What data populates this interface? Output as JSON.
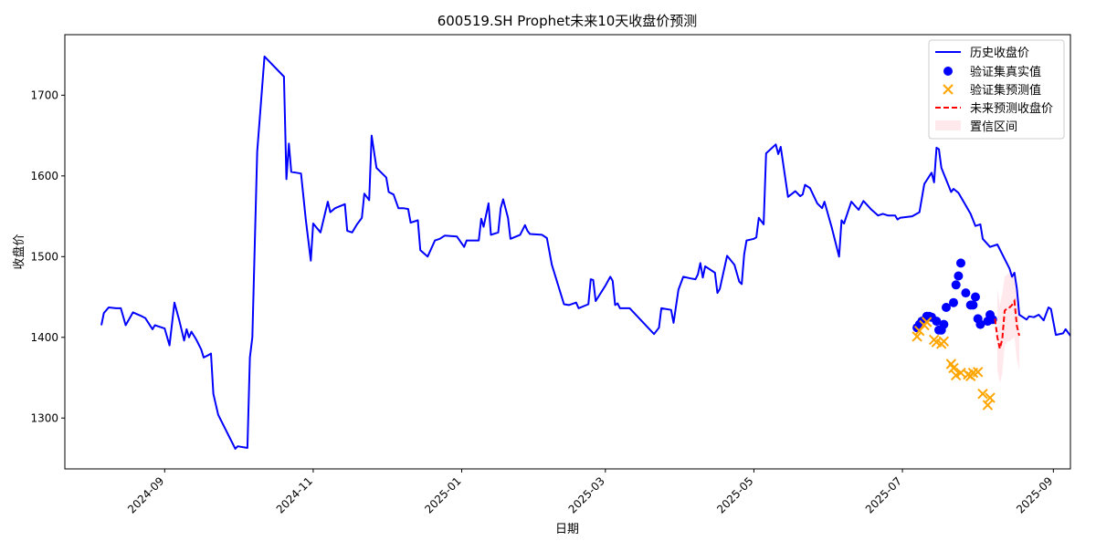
{
  "chart_data": {
    "type": "line",
    "title": "600519.SH Prophet未来10天收盘价预测",
    "xlabel": "日期",
    "ylabel": "收盘价",
    "x_tick_labels": [
      "2024-09",
      "2024-11",
      "2025-01",
      "2025-03",
      "2025-05",
      "2025-07",
      "2025-09"
    ],
    "y_ticks": [
      1300,
      1400,
      1500,
      1600,
      1700
    ],
    "xlim": [
      "2024-07-22",
      "2025-09-08"
    ],
    "ylim": [
      1237,
      1775
    ],
    "grid": false,
    "legend_position": "top-right",
    "colors": {
      "history": "#0000ff",
      "val_actual": "#0000ff",
      "val_pred": "#ffa500",
      "forecast": "#ff0000",
      "band": "#ffc0cb"
    },
    "series": [
      {
        "name": "历史收盘价",
        "kind": "line",
        "points": [
          [
            "2024-08-06",
            1415
          ],
          [
            "2024-08-07",
            1430
          ],
          [
            "2024-08-09",
            1437
          ],
          [
            "2024-08-12",
            1436
          ],
          [
            "2024-08-14",
            1436
          ],
          [
            "2024-08-16",
            1415
          ],
          [
            "2024-08-19",
            1431
          ],
          [
            "2024-08-22",
            1427
          ],
          [
            "2024-08-24",
            1424
          ],
          [
            "2024-08-27",
            1410
          ],
          [
            "2024-08-28",
            1415
          ],
          [
            "2024-08-30",
            1413
          ],
          [
            "2024-09-01",
            1411
          ],
          [
            "2024-09-03",
            1390
          ],
          [
            "2024-09-05",
            1443
          ],
          [
            "2024-09-07",
            1421
          ],
          [
            "2024-09-09",
            1396
          ],
          [
            "2024-09-10",
            1410
          ],
          [
            "2024-09-11",
            1400
          ],
          [
            "2024-09-12",
            1407
          ],
          [
            "2024-09-14",
            1397
          ],
          [
            "2024-09-16",
            1385
          ],
          [
            "2024-09-17",
            1375
          ],
          [
            "2024-09-19",
            1378
          ],
          [
            "2024-09-20",
            1380
          ],
          [
            "2024-09-21",
            1330
          ],
          [
            "2024-09-23",
            1304
          ],
          [
            "2024-09-30",
            1262
          ],
          [
            "2024-10-01",
            1265
          ],
          [
            "2024-10-05",
            1263
          ],
          [
            "2024-10-06",
            1375
          ],
          [
            "2024-10-07",
            1400
          ],
          [
            "2024-10-09",
            1630
          ],
          [
            "2024-10-12",
            1748
          ],
          [
            "2024-10-20",
            1723
          ],
          [
            "2024-10-21",
            1596
          ],
          [
            "2024-10-22",
            1640
          ],
          [
            "2024-10-23",
            1605
          ],
          [
            "2024-10-25",
            1604
          ],
          [
            "2024-10-27",
            1603
          ],
          [
            "2024-10-29",
            1545
          ],
          [
            "2024-10-31",
            1495
          ],
          [
            "2024-11-01",
            1541
          ],
          [
            "2024-11-04",
            1530
          ],
          [
            "2024-11-07",
            1568
          ],
          [
            "2024-11-08",
            1555
          ],
          [
            "2024-11-10",
            1560
          ],
          [
            "2024-11-14",
            1565
          ],
          [
            "2024-11-15",
            1532
          ],
          [
            "2024-11-17",
            1530
          ],
          [
            "2024-11-19",
            1540
          ],
          [
            "2024-11-21",
            1548
          ],
          [
            "2024-11-22",
            1578
          ],
          [
            "2024-11-24",
            1570
          ],
          [
            "2024-11-25",
            1650
          ],
          [
            "2024-11-27",
            1610
          ],
          [
            "2024-11-29",
            1604
          ],
          [
            "2024-12-01",
            1598
          ],
          [
            "2024-12-02",
            1580
          ],
          [
            "2024-12-04",
            1577
          ],
          [
            "2024-12-06",
            1560
          ],
          [
            "2024-12-08",
            1560
          ],
          [
            "2024-12-10",
            1559
          ],
          [
            "2024-12-11",
            1542
          ],
          [
            "2024-12-14",
            1545
          ],
          [
            "2024-12-15",
            1508
          ],
          [
            "2024-12-18",
            1500
          ],
          [
            "2024-12-21",
            1520
          ],
          [
            "2024-12-23",
            1522
          ],
          [
            "2024-12-25",
            1526
          ],
          [
            "2024-12-30",
            1525
          ],
          [
            "2025-01-02",
            1512
          ],
          [
            "2025-01-03",
            1520
          ],
          [
            "2025-01-08",
            1520
          ],
          [
            "2025-01-09",
            1547
          ],
          [
            "2025-01-10",
            1537
          ],
          [
            "2025-01-12",
            1566
          ],
          [
            "2025-01-13",
            1527
          ],
          [
            "2025-01-16",
            1530
          ],
          [
            "2025-01-17",
            1560
          ],
          [
            "2025-01-18",
            1571
          ],
          [
            "2025-01-20",
            1548
          ],
          [
            "2025-01-21",
            1522
          ],
          [
            "2025-01-25",
            1527
          ],
          [
            "2025-01-27",
            1539
          ],
          [
            "2025-01-28",
            1532
          ],
          [
            "2025-01-29",
            1528
          ],
          [
            "2025-02-03",
            1527
          ],
          [
            "2025-02-05",
            1523
          ],
          [
            "2025-02-07",
            1490
          ],
          [
            "2025-02-12",
            1441
          ],
          [
            "2025-02-14",
            1440
          ],
          [
            "2025-02-17",
            1443
          ],
          [
            "2025-02-18",
            1436
          ],
          [
            "2025-02-22",
            1441
          ],
          [
            "2025-02-23",
            1472
          ],
          [
            "2025-02-24",
            1471
          ],
          [
            "2025-02-25",
            1445
          ],
          [
            "2025-03-01",
            1464
          ],
          [
            "2025-03-03",
            1475
          ],
          [
            "2025-03-04",
            1470
          ],
          [
            "2025-03-05",
            1440
          ],
          [
            "2025-03-06",
            1442
          ],
          [
            "2025-03-07",
            1436
          ],
          [
            "2025-03-11",
            1436
          ],
          [
            "2025-03-21",
            1404
          ],
          [
            "2025-03-23",
            1412
          ],
          [
            "2025-03-24",
            1436
          ],
          [
            "2025-03-28",
            1434
          ],
          [
            "2025-03-29",
            1418
          ],
          [
            "2025-03-31",
            1459
          ],
          [
            "2025-04-02",
            1475
          ],
          [
            "2025-04-05",
            1473
          ],
          [
            "2025-04-07",
            1472
          ],
          [
            "2025-04-08",
            1478
          ],
          [
            "2025-04-09",
            1492
          ],
          [
            "2025-04-10",
            1474
          ],
          [
            "2025-04-11",
            1488
          ],
          [
            "2025-04-15",
            1480
          ],
          [
            "2025-04-16",
            1455
          ],
          [
            "2025-04-17",
            1460
          ],
          [
            "2025-04-20",
            1501
          ],
          [
            "2025-04-23",
            1490
          ],
          [
            "2025-04-25",
            1469
          ],
          [
            "2025-04-26",
            1466
          ],
          [
            "2025-04-27",
            1503
          ],
          [
            "2025-04-28",
            1520
          ],
          [
            "2025-05-01",
            1522
          ],
          [
            "2025-05-02",
            1524
          ],
          [
            "2025-05-03",
            1548
          ],
          [
            "2025-05-05",
            1540
          ],
          [
            "2025-05-06",
            1628
          ],
          [
            "2025-05-10",
            1639
          ],
          [
            "2025-05-11",
            1627
          ],
          [
            "2025-05-12",
            1636
          ],
          [
            "2025-05-15",
            1574
          ],
          [
            "2025-05-18",
            1581
          ],
          [
            "2025-05-20",
            1575
          ],
          [
            "2025-05-21",
            1577
          ],
          [
            "2025-05-22",
            1589
          ],
          [
            "2025-05-24",
            1585
          ],
          [
            "2025-05-27",
            1566
          ],
          [
            "2025-05-29",
            1560
          ],
          [
            "2025-05-30",
            1568
          ],
          [
            "2025-06-02",
            1536
          ],
          [
            "2025-06-05",
            1500
          ],
          [
            "2025-06-06",
            1545
          ],
          [
            "2025-06-07",
            1541
          ],
          [
            "2025-06-10",
            1568
          ],
          [
            "2025-06-13",
            1558
          ],
          [
            "2025-06-15",
            1569
          ],
          [
            "2025-06-18",
            1559
          ],
          [
            "2025-06-21",
            1551
          ],
          [
            "2025-06-23",
            1553
          ],
          [
            "2025-06-25",
            1551
          ],
          [
            "2025-06-28",
            1551
          ],
          [
            "2025-06-29",
            1546
          ],
          [
            "2025-06-30",
            1548
          ],
          [
            "2025-07-05",
            1550
          ],
          [
            "2025-07-08",
            1555
          ],
          [
            "2025-07-10",
            1590
          ],
          [
            "2025-07-13",
            1604
          ],
          [
            "2025-07-14",
            1592
          ],
          [
            "2025-07-15",
            1635
          ],
          [
            "2025-07-16",
            1633
          ],
          [
            "2025-07-17",
            1610
          ],
          [
            "2025-07-21",
            1580
          ],
          [
            "2025-07-22",
            1584
          ],
          [
            "2025-07-24",
            1579
          ],
          [
            "2025-07-29",
            1553
          ],
          [
            "2025-07-31",
            1538
          ],
          [
            "2025-08-02",
            1540
          ],
          [
            "2025-08-03",
            1522
          ],
          [
            "2025-08-06",
            1512
          ],
          [
            "2025-08-09",
            1515
          ],
          [
            "2025-08-14",
            1485
          ],
          [
            "2025-08-15",
            1475
          ],
          [
            "2025-08-16",
            1480
          ],
          [
            "2025-08-17",
            1460
          ],
          [
            "2025-08-18",
            1428
          ],
          [
            "2025-08-21",
            1422
          ],
          [
            "2025-08-22",
            1426
          ],
          [
            "2025-08-24",
            1425
          ],
          [
            "2025-08-26",
            1428
          ],
          [
            "2025-08-28",
            1421
          ],
          [
            "2025-08-30",
            1437
          ],
          [
            "2025-08-31",
            1435
          ],
          [
            "2025-09-02",
            1403
          ],
          [
            "2025-09-05",
            1405
          ],
          [
            "2025-09-06",
            1410
          ],
          [
            "2025-09-08",
            1402
          ]
        ]
      },
      {
        "name": "验证集真实值",
        "kind": "scatter",
        "points": [
          [
            "2025-07-07",
            1412
          ],
          [
            "2025-07-08",
            1416
          ],
          [
            "2025-07-09",
            1420
          ],
          [
            "2025-07-11",
            1426
          ],
          [
            "2025-07-12",
            1426
          ],
          [
            "2025-07-13",
            1425
          ],
          [
            "2025-07-15",
            1420
          ],
          [
            "2025-07-16",
            1409
          ],
          [
            "2025-07-17",
            1409
          ],
          [
            "2025-07-18",
            1416
          ],
          [
            "2025-07-19",
            1437
          ],
          [
            "2025-07-22",
            1443
          ],
          [
            "2025-07-23",
            1465
          ],
          [
            "2025-07-24",
            1476
          ],
          [
            "2025-07-25",
            1492
          ],
          [
            "2025-07-27",
            1455
          ],
          [
            "2025-07-29",
            1440
          ],
          [
            "2025-07-30",
            1440
          ],
          [
            "2025-07-31",
            1450
          ],
          [
            "2025-08-01",
            1423
          ],
          [
            "2025-08-02",
            1416
          ],
          [
            "2025-08-05",
            1420
          ],
          [
            "2025-08-06",
            1428
          ],
          [
            "2025-08-07",
            1422
          ]
        ]
      },
      {
        "name": "验证集预测值",
        "kind": "scatter",
        "points": [
          [
            "2025-07-07",
            1401
          ],
          [
            "2025-07-08",
            1408
          ],
          [
            "2025-07-10",
            1415
          ],
          [
            "2025-07-11",
            1419
          ],
          [
            "2025-07-14",
            1397
          ],
          [
            "2025-07-15",
            1394
          ],
          [
            "2025-07-17",
            1392
          ],
          [
            "2025-07-18",
            1395
          ],
          [
            "2025-07-21",
            1367
          ],
          [
            "2025-07-22",
            1362
          ],
          [
            "2025-07-23",
            1353
          ],
          [
            "2025-07-25",
            1356
          ],
          [
            "2025-07-28",
            1354
          ],
          [
            "2025-07-29",
            1352
          ],
          [
            "2025-07-30",
            1356
          ],
          [
            "2025-08-01",
            1357
          ],
          [
            "2025-08-03",
            1330
          ],
          [
            "2025-08-05",
            1316
          ],
          [
            "2025-08-06",
            1325
          ]
        ]
      },
      {
        "name": "未来预测收盘价",
        "kind": "line",
        "points": [
          [
            "2025-08-08",
            1423
          ],
          [
            "2025-08-09",
            1400
          ],
          [
            "2025-08-10",
            1386
          ],
          [
            "2025-08-11",
            1398
          ],
          [
            "2025-08-12",
            1433
          ],
          [
            "2025-08-13",
            1436
          ],
          [
            "2025-08-14",
            1437
          ],
          [
            "2025-08-15",
            1440
          ],
          [
            "2025-08-16",
            1445
          ],
          [
            "2025-08-17",
            1414
          ],
          [
            "2025-08-18",
            1402
          ]
        ]
      },
      {
        "name": "置信区间",
        "kind": "band",
        "points": [
          [
            "2025-08-09",
            1360,
            1460
          ],
          [
            "2025-08-10",
            1343,
            1440
          ],
          [
            "2025-08-11",
            1355,
            1455
          ],
          [
            "2025-08-12",
            1390,
            1475
          ],
          [
            "2025-08-13",
            1395,
            1478
          ],
          [
            "2025-08-14",
            1395,
            1480
          ],
          [
            "2025-08-15",
            1398,
            1482
          ],
          [
            "2025-08-16",
            1400,
            1480
          ],
          [
            "2025-08-17",
            1372,
            1456
          ],
          [
            "2025-08-18",
            1360,
            1444
          ]
        ]
      }
    ]
  }
}
